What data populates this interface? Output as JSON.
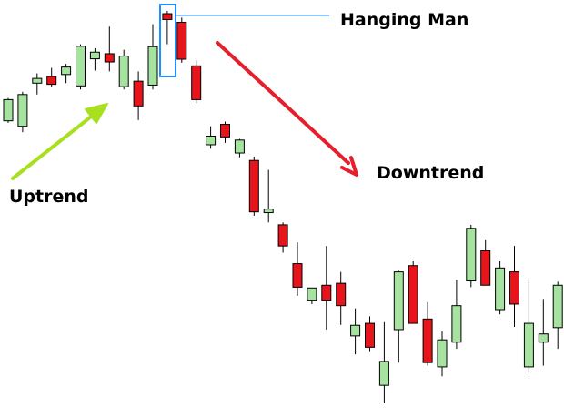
{
  "colors": {
    "background": "#ffffff",
    "bullish_fill": "#a6e3a1",
    "bearish_fill": "#e8141c",
    "candle_stroke": "#000000",
    "uptrend_arrow": "#a8e020",
    "downtrend_arrow": "#e51f2b",
    "highlight_box": "#1e90ff",
    "pointer_line": "#1e90ff"
  },
  "chart_data": {
    "type": "candlestick",
    "title": "",
    "xlabel": "",
    "ylabel": "",
    "axes_visible": false,
    "grid": false,
    "legend": "none",
    "note": "Price values read relative to the lowest plotted low (0) up to the highest plotted high (100); no axis scale is printed.",
    "ylim": [
      0,
      100
    ],
    "candles": [
      {
        "o": 72.0,
        "h": 77.8,
        "l": 71.5,
        "c": 77.4
      },
      {
        "o": 70.6,
        "h": 79.4,
        "l": 69.1,
        "c": 78.7
      },
      {
        "o": 81.6,
        "h": 84.1,
        "l": 78.7,
        "c": 82.8
      },
      {
        "o": 83.3,
        "h": 85.5,
        "l": 80.7,
        "c": 81.3
      },
      {
        "o": 83.8,
        "h": 86.5,
        "l": 81.6,
        "c": 85.7
      },
      {
        "o": 80.9,
        "h": 91.5,
        "l": 80.0,
        "c": 91.0
      },
      {
        "o": 87.8,
        "h": 90.5,
        "l": 84.8,
        "c": 89.5
      },
      {
        "o": 89.1,
        "h": 96.0,
        "l": 84.6,
        "c": 87.0
      },
      {
        "o": 80.7,
        "h": 90.1,
        "l": 80.0,
        "c": 88.5
      },
      {
        "o": 82.1,
        "h": 84.6,
        "l": 72.2,
        "c": 75.8
      },
      {
        "o": 81.1,
        "h": 96.6,
        "l": 80.0,
        "c": 90.9
      },
      {
        "o": 99.3,
        "h": 100.0,
        "l": 91.5,
        "c": 97.8
      },
      {
        "o": 97.1,
        "h": 98.3,
        "l": 86.8,
        "c": 87.7
      },
      {
        "o": 86.0,
        "h": 87.4,
        "l": 76.5,
        "c": 77.4
      },
      {
        "o": 65.9,
        "h": 70.6,
        "l": 64.9,
        "c": 68.1
      },
      {
        "o": 71.1,
        "h": 71.8,
        "l": 66.4,
        "c": 67.9
      },
      {
        "o": 63.8,
        "h": 67.4,
        "l": 62.7,
        "c": 67.1
      },
      {
        "o": 61.9,
        "h": 62.9,
        "l": 47.8,
        "c": 48.8
      },
      {
        "o": 48.6,
        "h": 59.5,
        "l": 46.1,
        "c": 49.5
      },
      {
        "o": 45.5,
        "h": 46.1,
        "l": 38.4,
        "c": 40.1
      },
      {
        "o": 35.6,
        "h": 41.0,
        "l": 27.4,
        "c": 29.6
      },
      {
        "o": 26.3,
        "h": 29.4,
        "l": 25.3,
        "c": 29.4
      },
      {
        "o": 30.1,
        "h": 40.1,
        "l": 18.8,
        "c": 26.3
      },
      {
        "o": 30.6,
        "h": 33.5,
        "l": 20.0,
        "c": 24.9
      },
      {
        "o": 17.2,
        "h": 24.2,
        "l": 12.5,
        "c": 19.9
      },
      {
        "o": 20.4,
        "h": 22.2,
        "l": 13.3,
        "c": 14.3
      },
      {
        "o": 4.6,
        "h": 20.7,
        "l": 0.0,
        "c": 10.7
      },
      {
        "o": 18.8,
        "h": 33.8,
        "l": 10.4,
        "c": 33.5
      },
      {
        "o": 35.1,
        "h": 36.2,
        "l": 21.0,
        "c": 20.4
      },
      {
        "o": 21.5,
        "h": 25.8,
        "l": 9.6,
        "c": 10.4
      },
      {
        "o": 9.3,
        "h": 18.3,
        "l": 6.9,
        "c": 16.2
      },
      {
        "o": 15.6,
        "h": 31.5,
        "l": 13.9,
        "c": 24.9
      },
      {
        "o": 31.2,
        "h": 45.5,
        "l": 29.6,
        "c": 44.6
      },
      {
        "o": 38.9,
        "h": 41.8,
        "l": 30.1,
        "c": 30.1
      },
      {
        "o": 23.9,
        "h": 36.2,
        "l": 22.7,
        "c": 34.5
      },
      {
        "o": 33.5,
        "h": 40.1,
        "l": 19.5,
        "c": 25.3
      },
      {
        "o": 9.3,
        "h": 31.5,
        "l": 7.9,
        "c": 20.4
      },
      {
        "o": 15.6,
        "h": 26.6,
        "l": 9.6,
        "c": 17.7
      },
      {
        "o": 19.3,
        "h": 31.0,
        "l": 13.9,
        "c": 30.1
      }
    ],
    "annotations": [
      {
        "label": "Hanging Man",
        "target_candle_index": 11
      },
      {
        "label": "Uptrend",
        "arrow": "up"
      },
      {
        "label": "Downtrend",
        "arrow": "down"
      }
    ]
  },
  "labels": {
    "hanging_man": "Hanging Man",
    "uptrend": "Uptrend",
    "downtrend": "Downtrend"
  }
}
